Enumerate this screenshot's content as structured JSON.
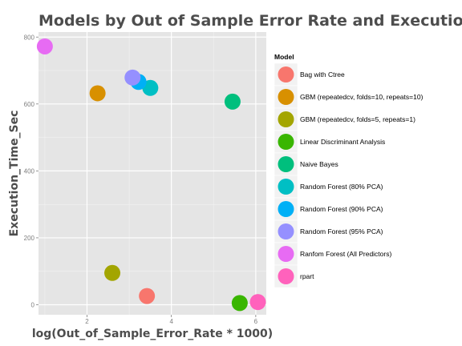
{
  "chart_data": {
    "type": "scatter",
    "title": "Models by Out of Sample Error Rate and Execution Time",
    "xlabel": "log(Out_of_Sample_Error_Rate * 1000)",
    "ylabel": "Execution_Time_Sec",
    "xlim": [
      0.85,
      6.25
    ],
    "ylim": [
      -30,
      815
    ],
    "x_ticks": [
      2,
      4,
      6
    ],
    "y_ticks": [
      0,
      200,
      400,
      600,
      800
    ],
    "grid": true,
    "legend_title": "Model",
    "legend_position": "right",
    "series": [
      {
        "name": "Bag with Ctree",
        "color": "#F8766D",
        "points": [
          {
            "x": 3.42,
            "y": 26
          }
        ]
      },
      {
        "name": "GBM (repeatedcv, folds=10, repeats=10)",
        "color": "#D89000",
        "points": [
          {
            "x": 2.25,
            "y": 632
          }
        ]
      },
      {
        "name": "GBM (repeatedcv, folds=5, repeats=1)",
        "color": "#A3A500",
        "points": [
          {
            "x": 2.6,
            "y": 95
          }
        ]
      },
      {
        "name": "Linear Discriminant Analysis",
        "color": "#39B600",
        "points": [
          {
            "x": 5.62,
            "y": 5
          }
        ]
      },
      {
        "name": "Naive Bayes",
        "color": "#00BF7D",
        "points": [
          {
            "x": 5.45,
            "y": 607
          }
        ]
      },
      {
        "name": "Random Forest (80% PCA)",
        "color": "#00BFC4",
        "points": [
          {
            "x": 3.5,
            "y": 648
          }
        ]
      },
      {
        "name": "Random Forest (90% PCA)",
        "color": "#00B0F6",
        "points": [
          {
            "x": 3.22,
            "y": 666
          }
        ]
      },
      {
        "name": "Random Forest (95% PCA)",
        "color": "#9590FF",
        "points": [
          {
            "x": 3.08,
            "y": 679
          }
        ]
      },
      {
        "name": "Ranfom Forest (All Predictors)",
        "color": "#E76BF3",
        "points": [
          {
            "x": 1.0,
            "y": 772
          }
        ]
      },
      {
        "name": "rpart",
        "color": "#FF62BC",
        "points": [
          {
            "x": 6.05,
            "y": 8
          }
        ]
      }
    ]
  }
}
